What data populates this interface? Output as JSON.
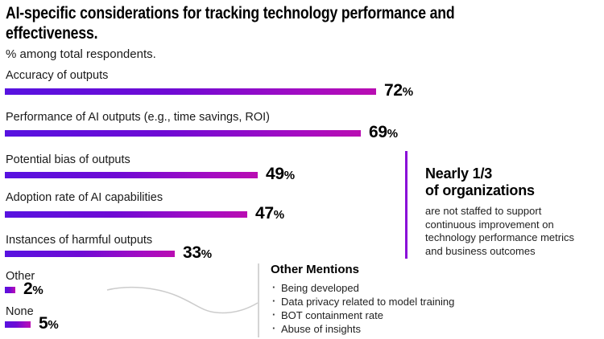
{
  "header": {
    "title": "AI-specific considerations for tracking technology performance and effectiveness.",
    "subtitle": "% among total respondents."
  },
  "chart_data": {
    "type": "bar",
    "orientation": "horizontal",
    "unit": "%",
    "title": "AI-specific considerations for tracking technology performance and effectiveness.",
    "subtitle": "% among total respondents.",
    "categories": [
      "Accuracy of outputs",
      "Performance of AI outputs (e.g., time savings, ROI)",
      "Potential bias of outputs",
      "Adoption rate of AI capabilities",
      "Instances of harmful outputs",
      "Other",
      "None"
    ],
    "values": [
      72,
      69,
      49,
      47,
      33,
      2,
      5
    ],
    "value_labels": [
      "72%",
      "69%",
      "49%",
      "47%",
      "33%",
      "2%",
      "5%"
    ],
    "xlim": [
      0,
      100
    ],
    "grid": false,
    "bar_gradient": [
      "#5712e0",
      "#b90db2"
    ]
  },
  "callout": {
    "heading_line1": "Nearly 1/3",
    "heading_line2": "of organizations",
    "body": "are not staffed to support continuous improvement on technology performance metrics and business outcomes",
    "accent_color": "#8a0ed8"
  },
  "other_mentions": {
    "title": "Other Mentions",
    "items": [
      "Being developed",
      "Data privacy related to model training",
      "BOT containment rate",
      "Abuse of insights"
    ]
  }
}
